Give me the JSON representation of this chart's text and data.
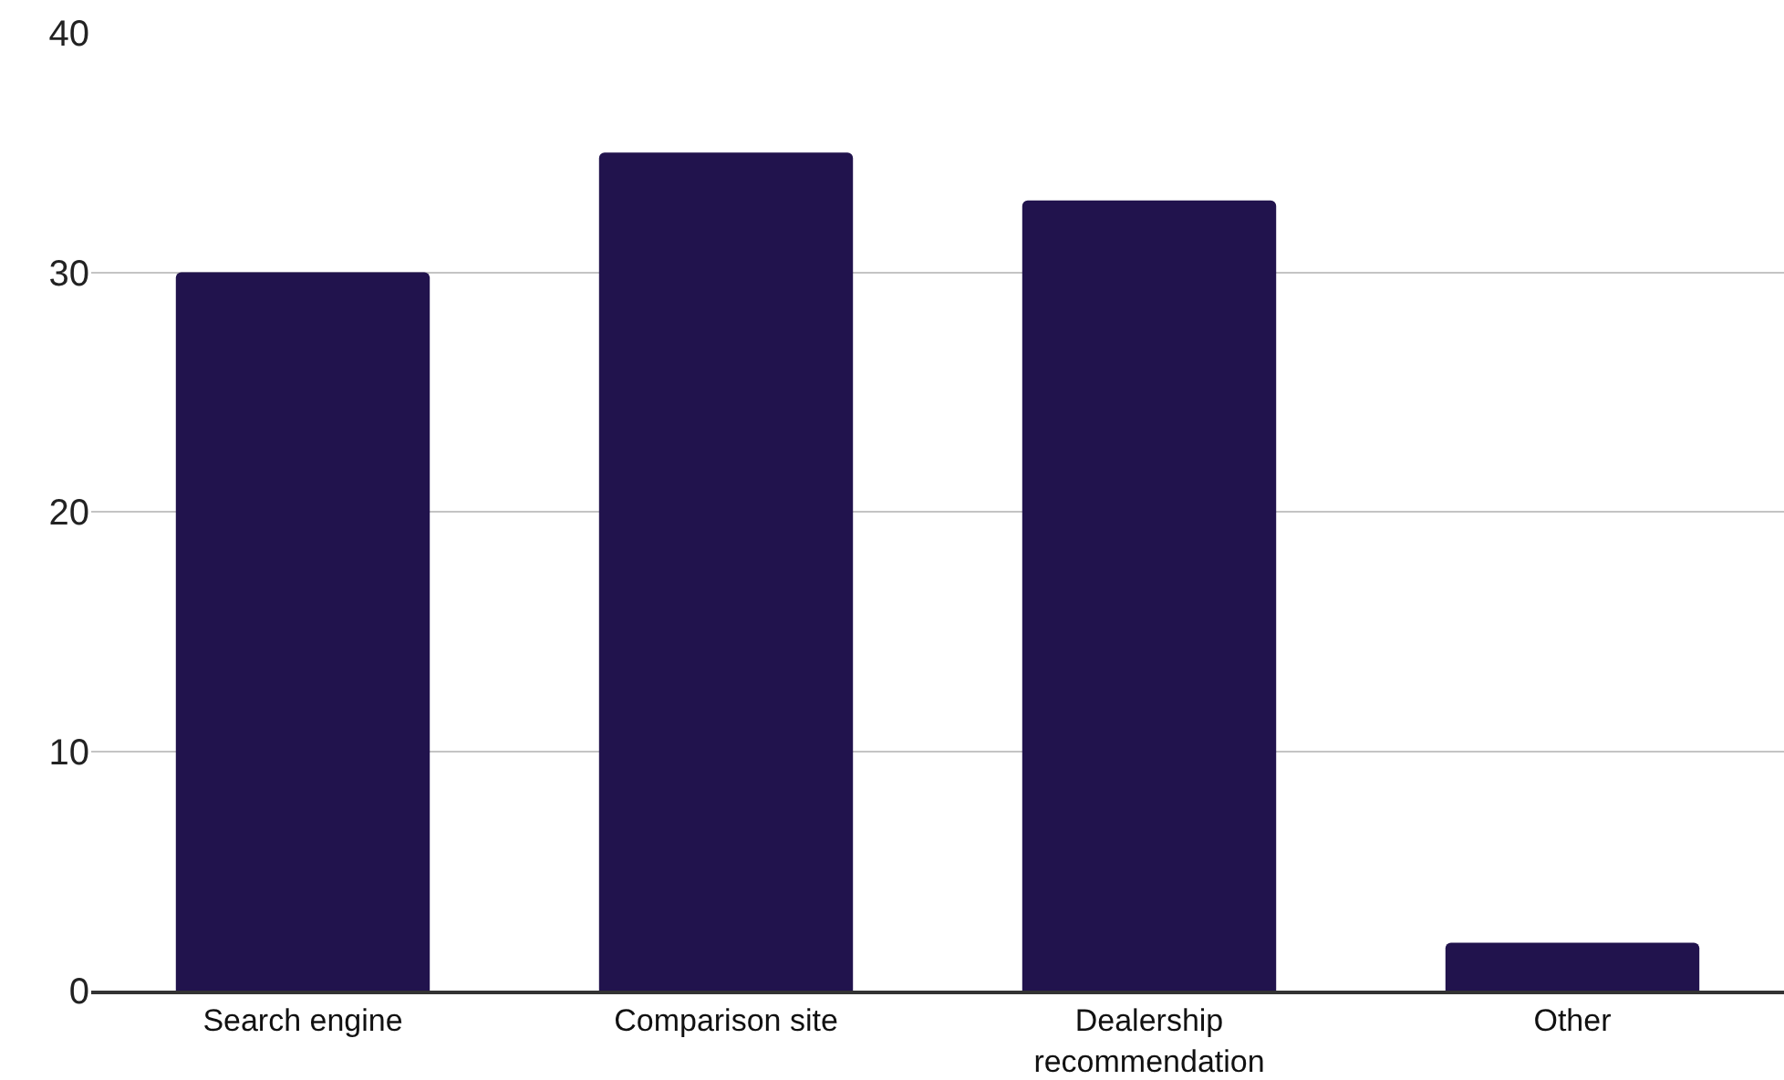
{
  "chart_data": {
    "type": "bar",
    "categories": [
      "Search engine",
      "Comparison site",
      "Dealership recommendation",
      "Other"
    ],
    "values": [
      30,
      35,
      33,
      2
    ],
    "color": "#21134d",
    "ylim": [
      0,
      40
    ],
    "yticks": [
      0,
      10,
      20,
      30,
      40
    ],
    "grid": "y"
  }
}
